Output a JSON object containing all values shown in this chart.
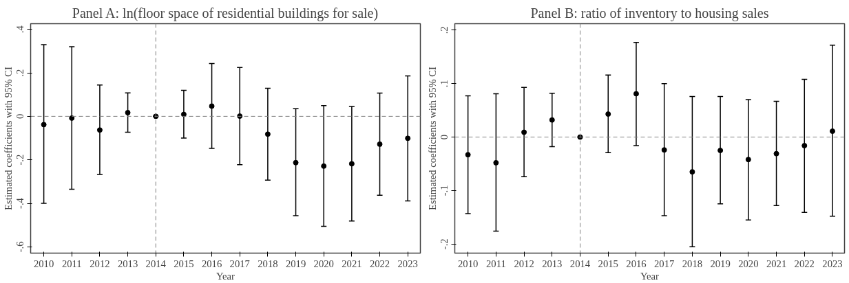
{
  "chart_data": [
    {
      "type": "scatter",
      "title": "Panel A: ln(floor space of residential buildings for sale)",
      "xlabel": "Year",
      "ylabel": "Estimated coefficients with 95% CI",
      "x": [
        2010,
        2011,
        2012,
        2013,
        2014,
        2015,
        2016,
        2017,
        2018,
        2019,
        2020,
        2021,
        2022,
        2023
      ],
      "series": [
        {
          "color": "#000000",
          "marker": "circle",
          "values": [
            -0.038,
            -0.008,
            -0.063,
            0.017,
            0,
            0.009,
            0.047,
            0.001,
            -0.082,
            -0.213,
            -0.229,
            -0.218,
            -0.128,
            -0.101
          ],
          "errors": [
            [
              -0.4,
              0.33
            ],
            [
              -0.335,
              0.32
            ],
            [
              -0.267,
              0.144
            ],
            [
              -0.073,
              0.108
            ],
            [
              0,
              0
            ],
            [
              -0.1,
              0.12
            ],
            [
              -0.147,
              0.243
            ],
            [
              -0.222,
              0.225
            ],
            [
              -0.293,
              0.129
            ],
            [
              -0.457,
              0.035
            ],
            [
              -0.506,
              0.049
            ],
            [
              -0.481,
              0.045
            ],
            [
              -0.363,
              0.107
            ],
            [
              -0.389,
              0.186
            ]
          ]
        }
      ],
      "xlim": [
        2009.53,
        2023.45
      ],
      "xticks": [
        2010,
        2011,
        2012,
        2013,
        2014,
        2015,
        2016,
        2017,
        2018,
        2019,
        2020,
        2021,
        2022,
        2023
      ],
      "ylim": [
        -0.629,
        0.426
      ],
      "yticks": [
        {
          "value": -0.6,
          "label": "-.6"
        },
        {
          "value": -0.4,
          "label": "-.4"
        },
        {
          "value": -0.2,
          "label": "-.2"
        },
        0,
        {
          "value": 0.2,
          "label": ".2"
        },
        {
          "value": 0.4,
          "label": ".4"
        }
      ],
      "ref_lines": [
        {
          "axis": "y",
          "value": 0,
          "color": "#808080",
          "line_style": "dashed"
        },
        {
          "axis": "x",
          "value": 2014,
          "color": "#808080",
          "line_style": "dashed"
        }
      ],
      "grid": false
    },
    {
      "type": "scatter",
      "title": "Panel B: ratio of inventory to housing sales",
      "xlabel": "Year",
      "ylabel": "Estimated coefficients with 95% CI",
      "x": [
        2010,
        2011,
        2012,
        2013,
        2014,
        2015,
        2016,
        2017,
        2018,
        2019,
        2020,
        2021,
        2022,
        2023
      ],
      "series": [
        {
          "color": "#000000",
          "marker": "circle",
          "values": [
            -0.033,
            -0.048,
            0.009,
            0.032,
            0,
            0.043,
            0.081,
            -0.024,
            -0.065,
            -0.025,
            -0.042,
            -0.031,
            -0.016,
            0.011
          ],
          "errors": [
            [
              -0.143,
              0.077
            ],
            [
              -0.176,
              0.081
            ],
            [
              -0.074,
              0.093
            ],
            [
              -0.018,
              0.082
            ],
            [
              0,
              0
            ],
            [
              -0.029,
              0.116
            ],
            [
              -0.016,
              0.177
            ],
            [
              -0.147,
              0.1
            ],
            [
              -0.205,
              0.076
            ],
            [
              -0.125,
              0.076
            ],
            [
              -0.155,
              0.07
            ],
            [
              -0.128,
              0.067
            ],
            [
              -0.141,
              0.108
            ],
            [
              -0.148,
              0.172
            ]
          ]
        }
      ],
      "xlim": [
        2009.53,
        2023.43
      ],
      "xticks": [
        2010,
        2011,
        2012,
        2013,
        2014,
        2015,
        2016,
        2017,
        2018,
        2019,
        2020,
        2021,
        2022,
        2023
      ],
      "ylim": [
        -0.217,
        0.212
      ],
      "yticks": [
        {
          "value": -0.2,
          "label": "-.2"
        },
        {
          "value": -0.1,
          "label": "-.1"
        },
        0,
        {
          "value": 0.1,
          "label": ".1"
        },
        {
          "value": 0.2,
          "label": ".2"
        }
      ],
      "ref_lines": [
        {
          "axis": "y",
          "value": 0,
          "color": "#808080",
          "line_style": "dashed"
        },
        {
          "axis": "x",
          "value": 2014,
          "color": "#808080",
          "line_style": "dashed"
        }
      ],
      "grid": false
    }
  ]
}
